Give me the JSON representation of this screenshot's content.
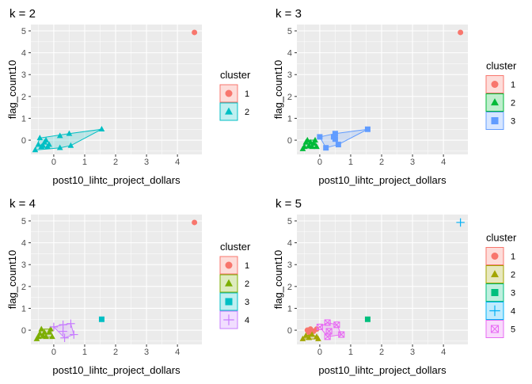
{
  "chart_data": [
    {
      "type": "scatter",
      "title": "k = 2",
      "xlabel": "post10_lihtc_project_dollars",
      "ylabel": "flag_count10",
      "xlim": [
        -0.74,
        4.79
      ],
      "ylim": [
        -0.65,
        5.29
      ],
      "xticks": [
        0,
        1,
        2,
        3,
        4
      ],
      "yticks": [
        0,
        1,
        2,
        3,
        4,
        5
      ],
      "legend_title": "cluster",
      "legend_position": "right",
      "clusters": [
        {
          "name": "1",
          "color": "#F8766D",
          "shape": "circle",
          "points": [
            [
              4.55,
              4.93
            ]
          ]
        },
        {
          "name": "2",
          "color": "#00BFC4",
          "shape": "triangle",
          "points": [
            [
              -0.6,
              -0.45
            ],
            [
              -0.45,
              0.1
            ],
            [
              -0.5,
              -0.2
            ],
            [
              -0.4,
              -0.3
            ],
            [
              -0.3,
              -0.1
            ],
            [
              -0.25,
              0.0
            ],
            [
              -0.2,
              -0.3
            ],
            [
              -0.35,
              -0.25
            ],
            [
              -0.15,
              -0.2
            ],
            [
              0.2,
              0.2
            ],
            [
              0.5,
              0.3
            ],
            [
              1.55,
              0.5
            ],
            [
              0.55,
              -0.25
            ],
            [
              0.2,
              -0.35
            ]
          ]
        }
      ]
    },
    {
      "type": "scatter",
      "title": "k = 3",
      "xlabel": "post10_lihtc_project_dollars",
      "ylabel": "flag_count10",
      "xlim": [
        -0.74,
        4.79
      ],
      "ylim": [
        -0.65,
        5.29
      ],
      "xticks": [
        0,
        1,
        2,
        3,
        4
      ],
      "yticks": [
        0,
        1,
        2,
        3,
        4,
        5
      ],
      "legend_title": "cluster",
      "legend_position": "right",
      "clusters": [
        {
          "name": "1",
          "color": "#F8766D",
          "shape": "circle",
          "points": [
            [
              4.55,
              4.93
            ]
          ]
        },
        {
          "name": "2",
          "color": "#00BA38",
          "shape": "triangle",
          "points": [
            [
              -0.55,
              -0.4
            ],
            [
              -0.45,
              -0.1
            ],
            [
              -0.4,
              0.0
            ],
            [
              -0.35,
              -0.25
            ],
            [
              -0.3,
              -0.1
            ],
            [
              -0.25,
              -0.3
            ],
            [
              -0.2,
              -0.15
            ],
            [
              -0.15,
              0.0
            ],
            [
              -0.1,
              -0.3
            ],
            [
              -0.5,
              -0.3
            ]
          ]
        },
        {
          "name": "3",
          "color": "#619CFF",
          "shape": "square",
          "points": [
            [
              0.0,
              0.15
            ],
            [
              0.5,
              0.3
            ],
            [
              1.55,
              0.5
            ],
            [
              0.6,
              -0.2
            ],
            [
              0.2,
              -0.35
            ],
            [
              0.5,
              0.05
            ],
            [
              0.45,
              0.15
            ]
          ]
        }
      ]
    },
    {
      "type": "scatter",
      "title": "k = 4",
      "xlabel": "post10_lihtc_project_dollars",
      "ylabel": "flag_count10",
      "xlim": [
        -0.74,
        4.79
      ],
      "ylim": [
        -0.65,
        5.29
      ],
      "xticks": [
        0,
        1,
        2,
        3,
        4
      ],
      "yticks": [
        0,
        1,
        2,
        3,
        4,
        5
      ],
      "legend_title": "cluster",
      "legend_position": "right",
      "clusters": [
        {
          "name": "1",
          "color": "#F8766D",
          "shape": "circle",
          "points": [
            [
              4.55,
              4.93
            ]
          ]
        },
        {
          "name": "2",
          "color": "#7CAE00",
          "shape": "triangle",
          "points": [
            [
              -0.55,
              -0.4
            ],
            [
              -0.45,
              -0.15
            ],
            [
              -0.4,
              0.05
            ],
            [
              -0.35,
              -0.25
            ],
            [
              -0.3,
              -0.1
            ],
            [
              -0.25,
              -0.3
            ],
            [
              -0.15,
              -0.1
            ],
            [
              -0.1,
              0.05
            ],
            [
              -0.05,
              -0.3
            ],
            [
              -0.5,
              -0.3
            ]
          ]
        },
        {
          "name": "3",
          "color": "#00BFC4",
          "shape": "square",
          "points": [
            [
              1.55,
              0.5
            ]
          ]
        },
        {
          "name": "4",
          "color": "#C77CFF",
          "shape": "plus",
          "points": [
            [
              0.0,
              0.15
            ],
            [
              0.3,
              0.25
            ],
            [
              0.55,
              0.3
            ],
            [
              0.65,
              -0.2
            ],
            [
              0.35,
              -0.35
            ],
            [
              0.3,
              -0.05
            ]
          ]
        }
      ]
    },
    {
      "type": "scatter",
      "title": "k = 5",
      "xlabel": "post10_lihtc_project_dollars",
      "ylabel": "flag_count10",
      "xlim": [
        -0.74,
        4.79
      ],
      "ylim": [
        -0.65,
        5.29
      ],
      "xticks": [
        0,
        1,
        2,
        3,
        4
      ],
      "yticks": [
        0,
        1,
        2,
        3,
        4,
        5
      ],
      "legend_title": "cluster",
      "legend_position": "right",
      "clusters": [
        {
          "name": "1",
          "color": "#F8766D",
          "shape": "circle",
          "points": [
            [
              -0.4,
              0.0
            ],
            [
              -0.3,
              0.05
            ],
            [
              -0.2,
              -0.05
            ],
            [
              -0.1,
              0.05
            ],
            [
              -0.35,
              -0.1
            ]
          ]
        },
        {
          "name": "2",
          "color": "#A3A500",
          "shape": "triangle",
          "points": [
            [
              -0.55,
              -0.4
            ],
            [
              -0.45,
              -0.25
            ],
            [
              -0.35,
              -0.35
            ],
            [
              -0.25,
              -0.2
            ],
            [
              -0.1,
              -0.3
            ],
            [
              -0.05,
              -0.4
            ]
          ]
        },
        {
          "name": "3",
          "color": "#00BF7D",
          "shape": "square",
          "points": [
            [
              1.55,
              0.5
            ]
          ]
        },
        {
          "name": "4",
          "color": "#00B0F6",
          "shape": "plus",
          "points": [
            [
              4.55,
              4.93
            ]
          ]
        },
        {
          "name": "5",
          "color": "#E76BF3",
          "shape": "boxx",
          "points": [
            [
              0.0,
              0.15
            ],
            [
              0.25,
              0.35
            ],
            [
              0.55,
              0.25
            ],
            [
              0.7,
              -0.2
            ],
            [
              0.25,
              -0.3
            ],
            [
              0.3,
              -0.05
            ]
          ]
        }
      ]
    }
  ]
}
